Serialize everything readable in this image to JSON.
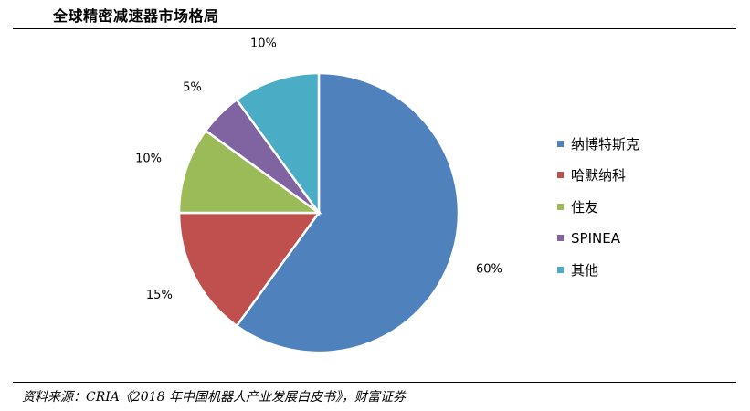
{
  "header": {
    "title": "全球精密减速器市场格局"
  },
  "footer": {
    "source": "资料来源：CRIA《2018 年中国机器人产业发展白皮书》，财富证券"
  },
  "chart_data": {
    "type": "pie",
    "title": "全球精密减速器市场格局",
    "legend_position": "right",
    "slices": [
      {
        "name": "纳博特斯克",
        "value": 60,
        "label": "60%",
        "color": "#4F81BD"
      },
      {
        "name": "哈默纳科",
        "value": 15,
        "label": "15%",
        "color": "#C0504D"
      },
      {
        "name": "住友",
        "value": 10,
        "label": "10%",
        "color": "#9BBB59"
      },
      {
        "name": "SPINEA",
        "value": 5,
        "label": "5%",
        "color": "#8064A2"
      },
      {
        "name": "其他",
        "value": 10,
        "label": "10%",
        "color": "#4BACC6"
      }
    ]
  }
}
